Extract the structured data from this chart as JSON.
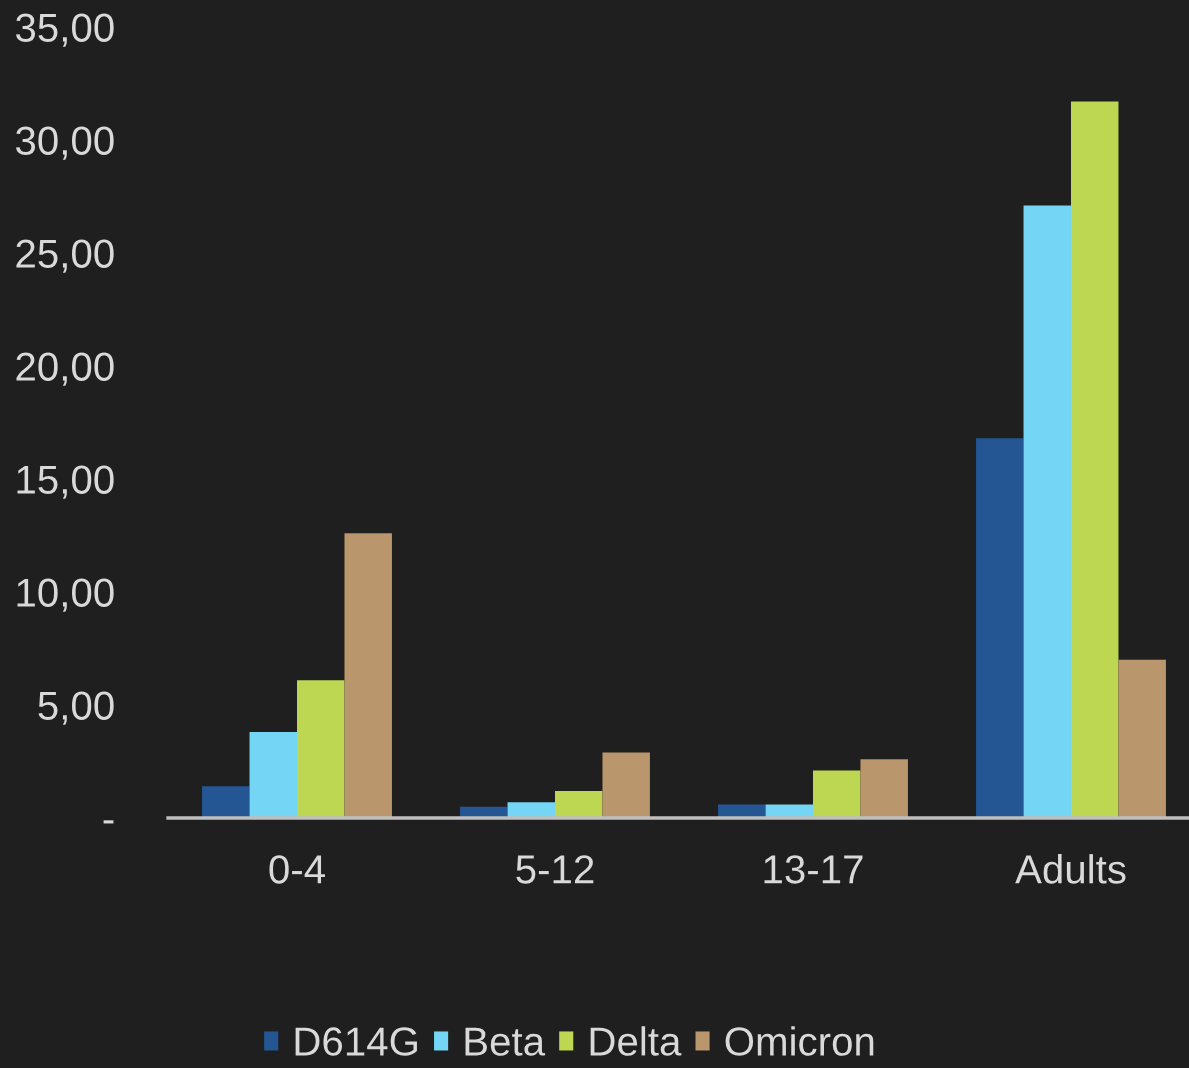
{
  "chart_data": {
    "type": "bar",
    "categories": [
      "0-4",
      "5-12",
      "13-17",
      "Adults"
    ],
    "series": [
      {
        "name": "D614G",
        "color": "#245694",
        "values": [
          1.4,
          0.5,
          0.6,
          16.8
        ]
      },
      {
        "name": "Beta",
        "color": "#75d5f5",
        "values": [
          3.8,
          0.7,
          0.6,
          27.1
        ]
      },
      {
        "name": "Delta",
        "color": "#bdd753",
        "values": [
          6.1,
          1.2,
          2.1,
          31.7
        ]
      },
      {
        "name": "Omicron",
        "color": "#b9966b",
        "values": [
          12.6,
          2.9,
          2.6,
          7.0
        ]
      }
    ],
    "ylim": [
      0,
      35
    ],
    "yticks": [
      {
        "value": 0,
        "label": "-"
      },
      {
        "value": 5,
        "label": "5,00"
      },
      {
        "value": 10,
        "label": "10,00"
      },
      {
        "value": 15,
        "label": "15,00"
      },
      {
        "value": 20,
        "label": "20,00"
      },
      {
        "value": 25,
        "label": "25,00"
      },
      {
        "value": 30,
        "label": "30,00"
      },
      {
        "value": 35,
        "label": "35,00"
      }
    ],
    "legend": "bottom"
  }
}
